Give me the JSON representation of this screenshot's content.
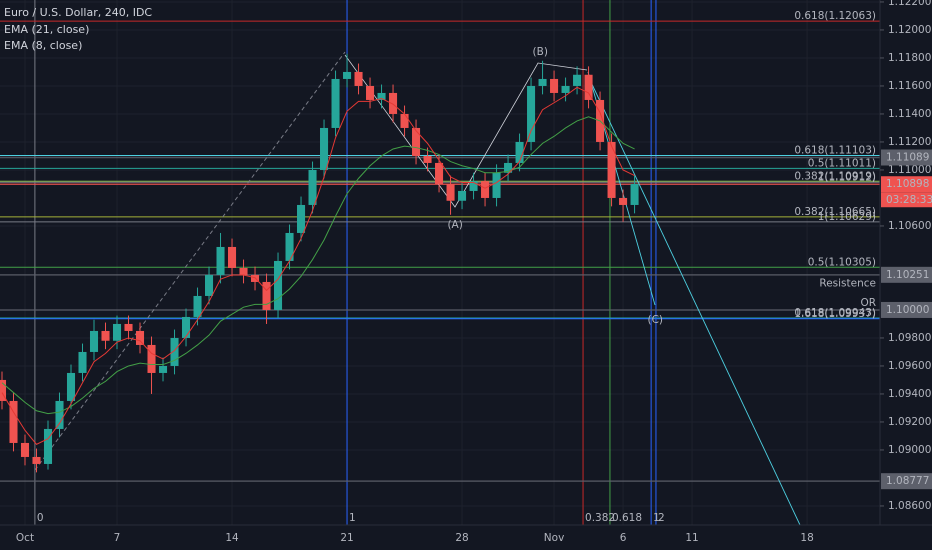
{
  "chart_data": {
    "type": "candlestick",
    "title": "Euro / U.S. Dollar, 240, IDC",
    "xlim": [
      -1.087,
      37.17
    ],
    "ylim": [
      1.08464,
      1.12214
    ],
    "grid": true,
    "up_color": "#26a69a",
    "down_color": "#ef5350",
    "xticks": [
      {
        "value": 0,
        "label": "Oct"
      },
      {
        "value": 4,
        "label": "7"
      },
      {
        "value": 9,
        "label": "14"
      },
      {
        "value": 14,
        "label": "21"
      },
      {
        "value": 19,
        "label": "28"
      },
      {
        "value": 23,
        "label": "Nov"
      },
      {
        "value": 26,
        "label": "6"
      },
      {
        "value": 29,
        "label": "11"
      },
      {
        "value": 34,
        "label": "18"
      }
    ],
    "yticks": [
      {
        "value": 1.122,
        "label": "1.12200"
      },
      {
        "value": 1.12,
        "label": "1.12000"
      },
      {
        "value": 1.118,
        "label": "1.11800"
      },
      {
        "value": 1.116,
        "label": "1.11600"
      },
      {
        "value": 1.114,
        "label": "1.11400"
      },
      {
        "value": 1.112,
        "label": "1.11200"
      },
      {
        "value": 1.11,
        "label": "1.11000"
      },
      {
        "value": 1.106,
        "label": "1.10600"
      },
      {
        "value": 1.098,
        "label": "1.09800"
      },
      {
        "value": 1.096,
        "label": "1.09600"
      },
      {
        "value": 1.094,
        "label": "1.09400"
      },
      {
        "value": 1.092,
        "label": "1.09200"
      },
      {
        "value": 1.09,
        "label": "1.09000"
      },
      {
        "value": 1.086,
        "label": "1.08600"
      }
    ],
    "x": [
      -1,
      -0.5,
      0,
      0.5,
      1,
      1.5,
      2,
      2.5,
      3,
      3.5,
      4,
      4.5,
      5,
      5.5,
      6,
      6.5,
      7,
      7.5,
      8,
      8.5,
      9,
      9.5,
      10,
      10.5,
      11,
      11.5,
      12,
      12.5,
      13,
      13.5,
      14,
      14.5,
      15,
      15.5,
      16,
      16.5,
      17,
      17.5,
      18,
      18.5,
      19,
      19.5,
      20,
      20.5,
      21,
      21.5,
      22,
      22.5,
      23,
      23.5,
      24,
      24.5,
      25,
      25.5,
      26,
      26.5
    ],
    "open": [
      1.095,
      1.0935,
      1.0905,
      1.0895,
      1.089,
      1.0915,
      1.0935,
      1.0955,
      1.097,
      1.0985,
      1.0978,
      1.099,
      1.0985,
      1.0975,
      1.0955,
      1.096,
      1.098,
      1.0995,
      1.101,
      1.1025,
      1.1045,
      1.103,
      1.1025,
      1.102,
      1.1,
      1.1035,
      1.1055,
      1.1075,
      1.11,
      1.113,
      1.1165,
      1.117,
      1.116,
      1.115,
      1.1155,
      1.114,
      1.113,
      1.111,
      1.1105,
      1.109,
      1.1078,
      1.1085,
      1.1092,
      1.108,
      1.1098,
      1.1105,
      1.112,
      1.116,
      1.1165,
      1.1155,
      1.116,
      1.1168,
      1.115,
      1.112,
      1.108,
      1.1075
    ],
    "high": [
      1.0956,
      1.0941,
      1.0911,
      1.0901,
      1.0921,
      1.0941,
      1.0961,
      1.0976,
      1.0993,
      1.0991,
      1.0996,
      1.0996,
      1.0991,
      1.0981,
      1.0966,
      1.0986,
      1.1001,
      1.1016,
      1.1031,
      1.1055,
      1.1051,
      1.1036,
      1.1031,
      1.1026,
      1.1041,
      1.1061,
      1.1081,
      1.1106,
      1.1136,
      1.1171,
      1.1183,
      1.1176,
      1.1166,
      1.1161,
      1.1161,
      1.1146,
      1.1136,
      1.1116,
      1.1111,
      1.1096,
      1.1091,
      1.1098,
      1.1098,
      1.1104,
      1.1111,
      1.1126,
      1.1166,
      1.1178,
      1.1171,
      1.1166,
      1.1174,
      1.1174,
      1.1156,
      1.1126,
      1.1086,
      1.1096
    ],
    "low": [
      1.0929,
      1.0899,
      1.0889,
      1.0884,
      1.0886,
      1.0909,
      1.0929,
      1.0949,
      1.0964,
      1.0972,
      1.0972,
      1.0979,
      1.0969,
      1.094,
      1.0949,
      1.0954,
      1.0974,
      1.0989,
      1.1004,
      1.1019,
      1.1024,
      1.1019,
      1.1014,
      1.099,
      1.0994,
      1.1029,
      1.1049,
      1.1069,
      1.1094,
      1.1124,
      1.1159,
      1.1154,
      1.1144,
      1.1144,
      1.1134,
      1.1124,
      1.1104,
      1.1099,
      1.1084,
      1.1068,
      1.1072,
      1.1079,
      1.1074,
      1.1074,
      1.1092,
      1.1099,
      1.1114,
      1.1154,
      1.1149,
      1.1149,
      1.1154,
      1.1144,
      1.1114,
      1.1074,
      1.1063,
      1.1069
    ],
    "close": [
      1.0935,
      1.0905,
      1.0895,
      1.089,
      1.0915,
      1.0935,
      1.0955,
      1.097,
      1.0985,
      1.0978,
      1.099,
      1.0985,
      1.0975,
      1.0955,
      1.096,
      1.098,
      1.0995,
      1.101,
      1.1025,
      1.1045,
      1.103,
      1.1025,
      1.102,
      1.1,
      1.1035,
      1.1055,
      1.1075,
      1.11,
      1.113,
      1.1165,
      1.117,
      1.116,
      1.115,
      1.1155,
      1.114,
      1.113,
      1.111,
      1.1105,
      1.109,
      1.1078,
      1.1085,
      1.1092,
      1.108,
      1.1098,
      1.1105,
      1.112,
      1.116,
      1.1165,
      1.1155,
      1.116,
      1.1168,
      1.115,
      1.112,
      1.108,
      1.1075,
      1.109
    ],
    "series": [
      {
        "name": "EMA (21, close)",
        "color": "#43a047",
        "values": [
          1.0948,
          1.0941,
          1.0934,
          1.0928,
          1.0926,
          1.0927,
          1.0931,
          1.0937,
          1.0944,
          1.0949,
          1.0956,
          1.096,
          1.0962,
          1.0961,
          1.0961,
          1.0964,
          1.0969,
          1.0975,
          1.0982,
          1.0992,
          1.0997,
          1.1002,
          1.1004,
          1.1004,
          1.1008,
          1.1015,
          1.1024,
          1.1036,
          1.105,
          1.1067,
          1.1083,
          1.1094,
          1.1103,
          1.111,
          1.1115,
          1.1117,
          1.1116,
          1.1114,
          1.1111,
          1.1106,
          1.1103,
          1.1101,
          1.1098,
          1.1098,
          1.1099,
          1.1102,
          1.1111,
          1.1119,
          1.1124,
          1.113,
          1.1135,
          1.1138,
          1.1135,
          1.1127,
          1.1119,
          1.1115
        ]
      },
      {
        "name": "EMA (8, close)",
        "color": "#e53935",
        "values": [
          1.0941,
          1.0927,
          1.0914,
          1.0904,
          1.0908,
          1.0919,
          1.0933,
          1.0948,
          1.0963,
          1.0969,
          1.0977,
          1.098,
          1.0978,
          1.0969,
          1.0965,
          1.0971,
          1.0981,
          1.0993,
          1.1006,
          1.1022,
          1.1025,
          1.1025,
          1.1023,
          1.1014,
          1.1022,
          1.1035,
          1.1051,
          1.1071,
          1.1095,
          1.1123,
          1.1142,
          1.1149,
          1.1149,
          1.1151,
          1.1147,
          1.114,
          1.1128,
          1.1119,
          1.1107,
          1.1095,
          1.1091,
          1.1091,
          1.1087,
          1.1091,
          1.1097,
          1.1106,
          1.1128,
          1.1143,
          1.1148,
          1.1153,
          1.1159,
          1.1155,
          1.1141,
          1.1117,
          1.11,
          1.1096
        ]
      }
    ],
    "levels": [
      {
        "label": "0.618(1.12063)",
        "value": 1.12063,
        "color": "#c62828"
      },
      {
        "label": "0.618(1.11103)",
        "value": 1.11103,
        "color": "#4dd0e1"
      },
      {
        "label": "0.5(1.11011)",
        "value": 1.11011,
        "color": "#26a69a"
      },
      {
        "label": "0.382(1.10919)",
        "value": 1.10919,
        "color": "#8bc34a"
      },
      {
        "label": "1(1.10912)",
        "value": 1.10912,
        "color": "#787b86"
      },
      {
        "label": "0.382(1.10665)",
        "value": 1.10665,
        "color": "#a4b23a"
      },
      {
        "label": "1(1.10629)",
        "value": 1.10629,
        "color": "#787b86"
      },
      {
        "label": "0.5(1.10305)",
        "value": 1.10305,
        "color": "#43a047"
      },
      {
        "label": "0.618(1.09943)",
        "value": 1.09943,
        "color": "#26a69a"
      },
      {
        "label": "1.618(1.09937)",
        "value": 1.09937,
        "color": "#2962ff"
      }
    ],
    "notes": [
      {
        "text": "Resistence",
        "value": 1.1019
      },
      {
        "text": "OR",
        "value": 1.1005
      }
    ],
    "waves": [
      {
        "text": "(A)",
        "x": 18.7,
        "y": 1.10607
      },
      {
        "text": "(B)",
        "x": 22.4,
        "y": 1.11843
      },
      {
        "text": "(C)",
        "x": 27.4,
        "y": 1.09929
      }
    ],
    "vlines": [
      {
        "x": 0.43,
        "label": "0",
        "color": "#787b86"
      },
      {
        "x": 14,
        "label": "1",
        "color": "#2962ff"
      },
      {
        "x": 24.26,
        "label": "0.382",
        "color": "#c62828"
      },
      {
        "x": 25.43,
        "label": "0.618",
        "color": "#43a047"
      },
      {
        "x": 27.22,
        "label": "1",
        "color": "#2962ff"
      },
      {
        "x": 27.43,
        "label": "2",
        "color": "#2962ff"
      }
    ],
    "price_tags": [
      {
        "value": 1.11089,
        "label": "1.11089",
        "color": "#5d606b"
      },
      {
        "value": 1.10898,
        "label": "1.10898",
        "color": "#ef5350"
      },
      {
        "value": 1.10251,
        "label": "1.10251",
        "color": "#5d606b"
      },
      {
        "value": 1.1,
        "label": "1.10000",
        "color": "#5d606b"
      },
      {
        "value": 1.08777,
        "label": "1.08777",
        "color": "#5d606b"
      }
    ],
    "countdown": "03:28:33"
  }
}
